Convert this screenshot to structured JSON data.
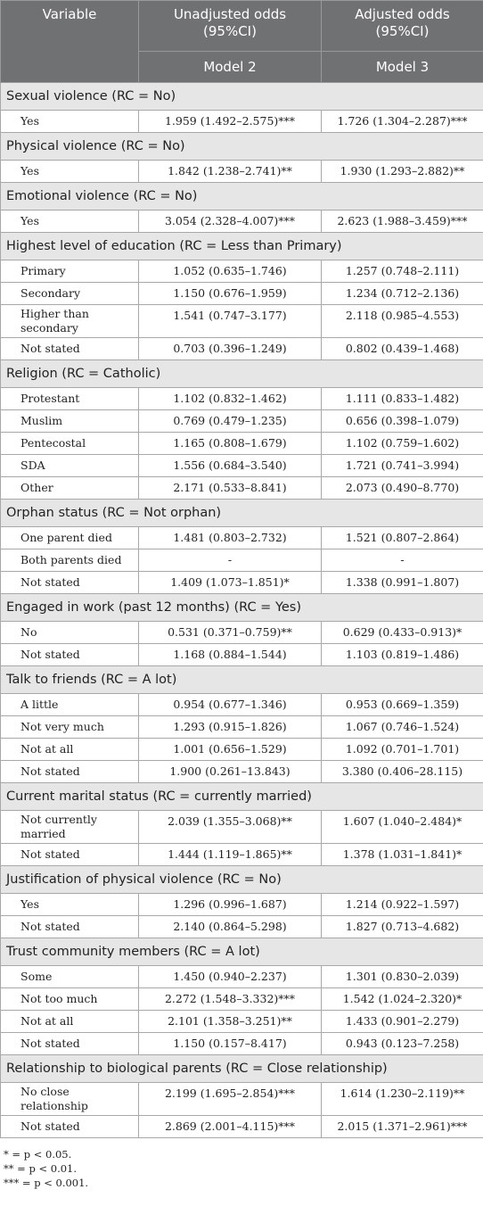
{
  "table": {
    "header": {
      "variable": "Variable",
      "col1": "Unadjusted odds (95%CI)",
      "col2": "Adjusted odds (95%CI)",
      "model1": "Model 2",
      "model2": "Model 3"
    },
    "sections": [
      {
        "title": "Sexual violence (RC = No)",
        "rows": [
          [
            "Yes",
            "1.959 (1.492–2.575)***",
            "1.726 (1.304–2.287)***"
          ]
        ]
      },
      {
        "title": "Physical violence (RC = No)",
        "rows": [
          [
            "Yes",
            "1.842 (1.238–2.741)**",
            "1.930 (1.293–2.882)**"
          ]
        ]
      },
      {
        "title": "Emotional violence (RC = No)",
        "rows": [
          [
            "Yes",
            "3.054 (2.328–4.007)***",
            "2.623 (1.988–3.459)***"
          ]
        ]
      },
      {
        "title": "Highest level of education (RC = Less than Primary)",
        "rows": [
          [
            "Primary",
            "1.052 (0.635–1.746)",
            "1.257 (0.748–2.111)"
          ],
          [
            "Secondary",
            "1.150 (0.676–1.959)",
            "1.234 (0.712–2.136)"
          ],
          [
            "Higher than secondary",
            "1.541 (0.747–3.177)",
            "2.118 (0.985–4.553)"
          ],
          [
            "Not stated",
            "0.703 (0.396–1.249)",
            "0.802 (0.439–1.468)"
          ]
        ]
      },
      {
        "title": "Religion (RC = Catholic)",
        "rows": [
          [
            "Protestant",
            "1.102 (0.832–1.462)",
            "1.111 (0.833–1.482)"
          ],
          [
            "Muslim",
            "0.769 (0.479–1.235)",
            "0.656 (0.398–1.079)"
          ],
          [
            "Pentecostal",
            "1.165 (0.808–1.679)",
            "1.102 (0.759–1.602)"
          ],
          [
            "SDA",
            "1.556 (0.684–3.540)",
            "1.721 (0.741–3.994)"
          ],
          [
            "Other",
            "2.171 (0.533–8.841)",
            "2.073 (0.490–8.770)"
          ]
        ]
      },
      {
        "title": "Orphan status (RC = Not orphan)",
        "rows": [
          [
            "One parent died",
            "1.481 (0.803–2.732)",
            "1.521 (0.807–2.864)"
          ],
          [
            "Both parents died",
            "-",
            "-"
          ],
          [
            "Not stated",
            "1.409 (1.073–1.851)*",
            "1.338 (0.991–1.807)"
          ]
        ]
      },
      {
        "title": "Engaged in work (past 12 months) (RC = Yes)",
        "rows": [
          [
            "No",
            "0.531 (0.371–0.759)**",
            "0.629 (0.433–0.913)*"
          ],
          [
            "Not stated",
            "1.168 (0.884–1.544)",
            "1.103 (0.819–1.486)"
          ]
        ]
      },
      {
        "title": "Talk to friends (RC = A lot)",
        "rows": [
          [
            "A little",
            "0.954 (0.677–1.346)",
            "0.953 (0.669–1.359)"
          ],
          [
            "Not very much",
            "1.293 (0.915–1.826)",
            "1.067 (0.746–1.524)"
          ],
          [
            "Not at all",
            "1.001 (0.656–1.529)",
            "1.092 (0.701–1.701)"
          ],
          [
            "Not stated",
            "1.900 (0.261–13.843)",
            "3.380 (0.406–28.115)"
          ]
        ]
      },
      {
        "title": "Current marital status (RC = currently married)",
        "rows": [
          [
            "Not currently married",
            "2.039 (1.355–3.068)**",
            "1.607 (1.040–2.484)*"
          ],
          [
            "Not stated",
            "1.444 (1.119–1.865)**",
            "1.378 (1.031–1.841)*"
          ]
        ]
      },
      {
        "title": "Justification of physical violence (RC = No)",
        "rows": [
          [
            "Yes",
            "1.296 (0.996–1.687)",
            "1.214 (0.922–1.597)"
          ],
          [
            "Not stated",
            "2.140 (0.864–5.298)",
            "1.827 (0.713–4.682)"
          ]
        ]
      },
      {
        "title": "Trust community members (RC = A lot)",
        "rows": [
          [
            "Some",
            "1.450 (0.940–2.237)",
            "1.301 (0.830–2.039)"
          ],
          [
            "Not too much",
            "2.272 (1.548–3.332)***",
            "1.542 (1.024–2.320)*"
          ],
          [
            "Not at all",
            "2.101 (1.358–3.251)**",
            "1.433 (0.901–2.279)"
          ],
          [
            "Not stated",
            "1.150 (0.157–8.417)",
            "0.943 (0.123–7.258)"
          ]
        ]
      },
      {
        "title": "Relationship to biological parents (RC = Close relationship)",
        "rows": [
          [
            "No close relationship",
            "2.199 (1.695–2.854)***",
            "1.614 (1.230–2.119)**"
          ],
          [
            "Not stated",
            "2.869 (2.001–4.115)***",
            "2.015 (1.371–2.961)***"
          ]
        ]
      }
    ]
  },
  "footnotes": [
    "* = p < 0.05.",
    "** = p < 0.01.",
    "*** = p < 0.001."
  ]
}
